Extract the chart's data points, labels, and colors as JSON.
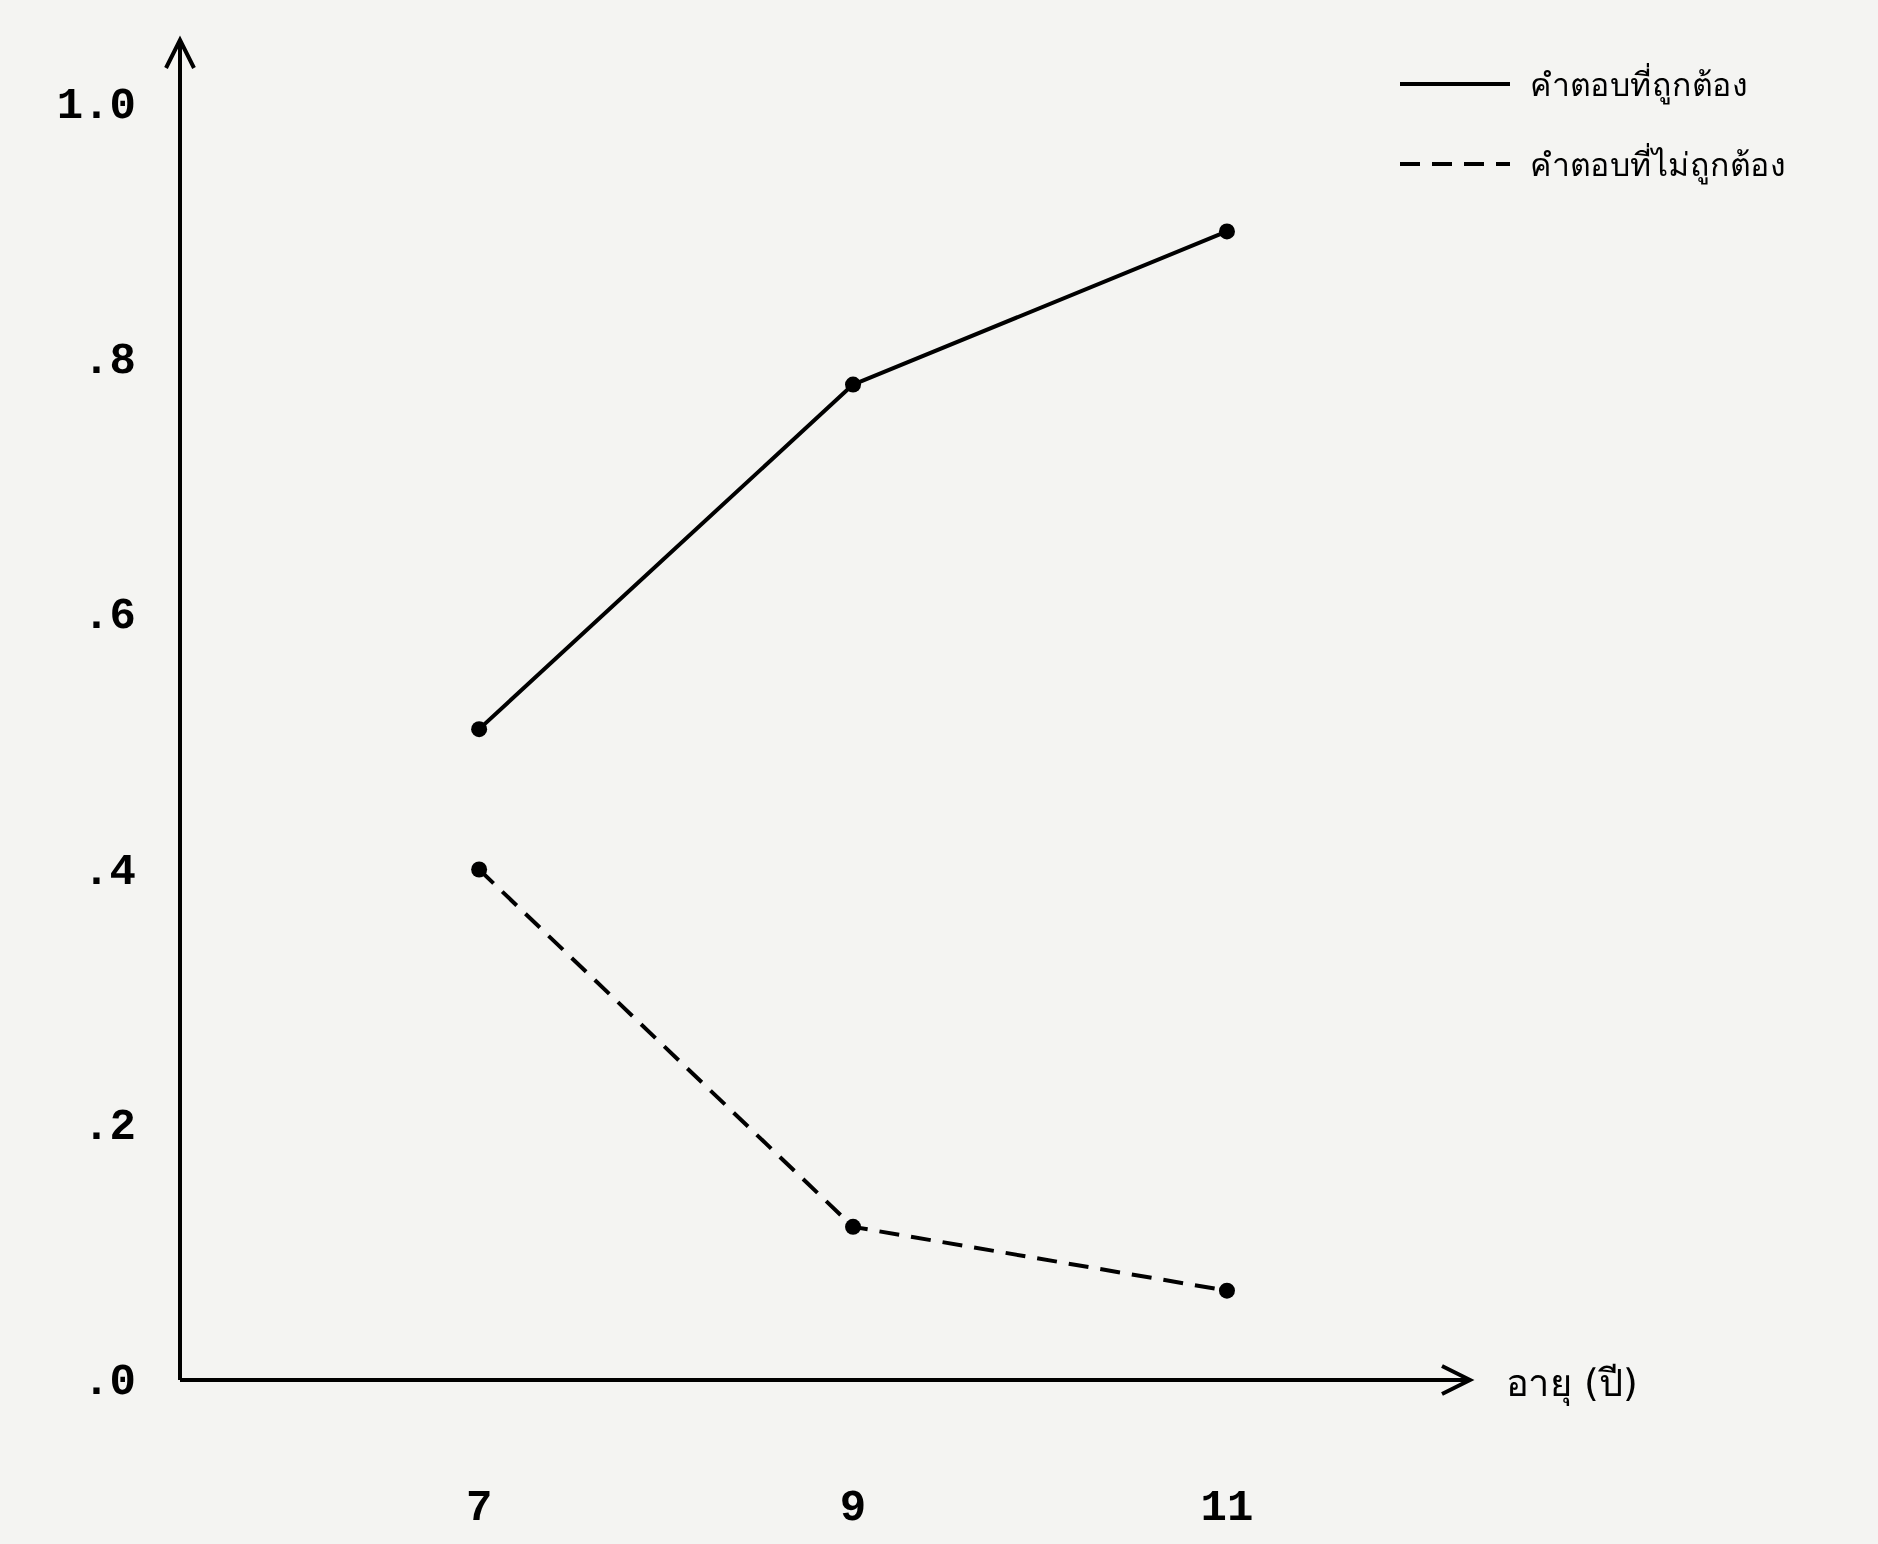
{
  "chart_data": {
    "type": "line",
    "xlabel": "อายุ (ปี)",
    "x": [
      7,
      9,
      11
    ],
    "series": [
      {
        "name": "คำตอบที่ถูกต้อง",
        "color": "#000000",
        "values": [
          0.51,
          0.78,
          0.9
        ],
        "line_style": "solid"
      },
      {
        "name": "คำตอบที่ไม่ถูกต้อง",
        "color": "#000000",
        "values": [
          0.4,
          0.12,
          0.07
        ],
        "line_style": "dashed"
      }
    ],
    "xlim": [
      5.4,
      12.3
    ],
    "ylim": [
      0,
      1.05
    ],
    "xticks": [
      7,
      9,
      11
    ],
    "yticks": [
      {
        "value": 0,
        "label": ".0"
      },
      {
        "value": 0.2,
        "label": ".2"
      },
      {
        "value": 0.4,
        "label": ".4"
      },
      {
        "value": 0.6,
        "label": ".6"
      },
      {
        "value": 0.8,
        "label": ".8"
      },
      {
        "value": 1.0,
        "label": "1.0"
      }
    ],
    "marker": "circle",
    "legend": "top right"
  }
}
